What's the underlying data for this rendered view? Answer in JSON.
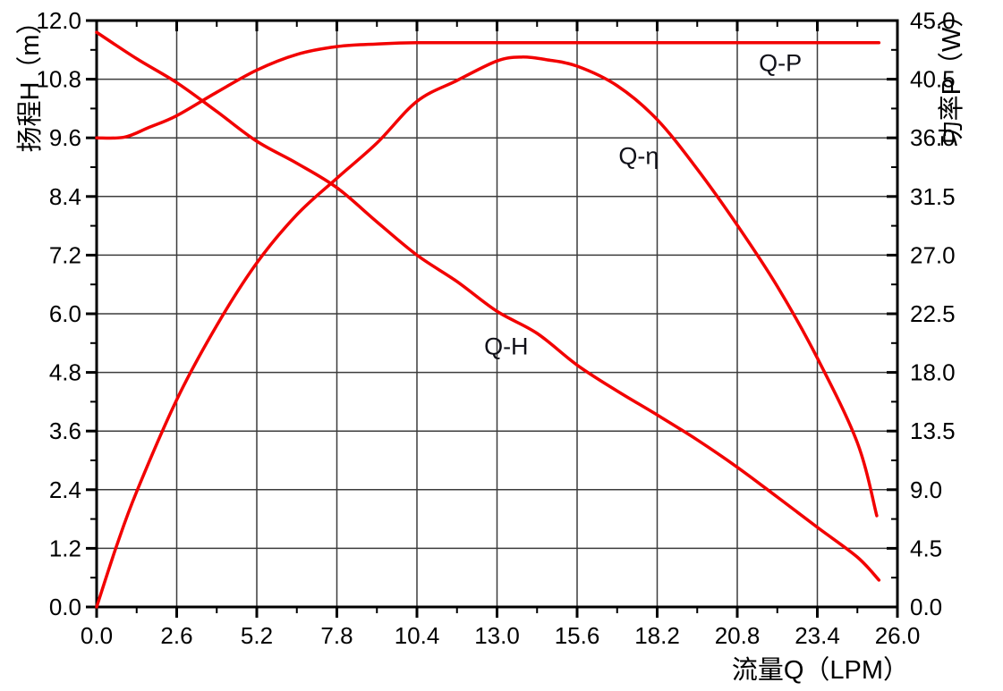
{
  "chart_data": {
    "type": "line",
    "title": "",
    "xlabel": "流量Q（LPM）",
    "ylabel_left": "扬程H（m）",
    "ylabel_right": "功率P（W）",
    "xlim": [
      0,
      26
    ],
    "ylim_left": [
      0,
      12
    ],
    "ylim_right": [
      0,
      45
    ],
    "x_tick_labels": [
      "0.0",
      "2.6",
      "5.2",
      "7.8",
      "10.4",
      "13.0",
      "15.6",
      "18.2",
      "20.8",
      "23.4",
      "26.0"
    ],
    "y_left_tick_labels": [
      "0.0",
      "1.2",
      "2.4",
      "3.6",
      "4.8",
      "6.0",
      "7.2",
      "8.4",
      "9.6",
      "10.8",
      "12.0"
    ],
    "y_right_tick_labels": [
      "0.0",
      "4.5",
      "9.0",
      "13.5",
      "18.0",
      "22.5",
      "27.0",
      "31.5",
      "36.0",
      "40.5",
      "45.0"
    ],
    "x_major_step": 2.6,
    "x_minor_step": 1.3,
    "y_left_major_step": 1.2,
    "y_left_minor_step": 0.6,
    "y_right_major_step": 4.5,
    "y_right_minor_step": 2.25,
    "grid": true,
    "legend_position": "inline-labels",
    "colors": {
      "curve": "#f20000",
      "axis": "#000000",
      "grid": "#3c3c3c",
      "text": "#000000"
    },
    "series": [
      {
        "name": "Q-H",
        "label": "Q-H",
        "axis": "left",
        "label_at": {
          "x": 13.3,
          "y": 5.32
        },
        "points": [
          [
            0,
            11.76
          ],
          [
            1.3,
            11.22
          ],
          [
            2.6,
            10.73
          ],
          [
            3.9,
            10.14
          ],
          [
            5.2,
            9.53
          ],
          [
            6.5,
            9.08
          ],
          [
            7.8,
            8.58
          ],
          [
            9.1,
            7.88
          ],
          [
            10.4,
            7.2
          ],
          [
            11.7,
            6.66
          ],
          [
            13,
            6.05
          ],
          [
            14.3,
            5.6
          ],
          [
            15.6,
            4.95
          ],
          [
            16.9,
            4.42
          ],
          [
            18.2,
            3.93
          ],
          [
            19.5,
            3.42
          ],
          [
            20.8,
            2.86
          ],
          [
            22.1,
            2.25
          ],
          [
            23.4,
            1.63
          ],
          [
            24.7,
            1.02
          ],
          [
            25.4,
            0.55
          ]
        ]
      },
      {
        "name": "Q-P",
        "label": "Q-P",
        "axis": "right",
        "label_at": {
          "x": 22.2,
          "y": 41.7
        },
        "points": [
          [
            0,
            36
          ],
          [
            0.9,
            36.05
          ],
          [
            1.7,
            36.8
          ],
          [
            2.6,
            37.7
          ],
          [
            3.9,
            39.5
          ],
          [
            5.2,
            41.2
          ],
          [
            6.5,
            42.4
          ],
          [
            7.8,
            43.0
          ],
          [
            9.1,
            43.2
          ],
          [
            10.4,
            43.3
          ],
          [
            13,
            43.3
          ],
          [
            15.6,
            43.3
          ],
          [
            18.2,
            43.3
          ],
          [
            20.8,
            43.3
          ],
          [
            23.4,
            43.3
          ],
          [
            25.4,
            43.3
          ]
        ]
      },
      {
        "name": "Q-eta",
        "label": "Q-η",
        "axis": "right",
        "label_at": {
          "x": 17.6,
          "y": 34.6
        },
        "points": [
          [
            0,
            0
          ],
          [
            0.65,
            4.7
          ],
          [
            1.3,
            8.85
          ],
          [
            2.6,
            15.9
          ],
          [
            3.9,
            21.6
          ],
          [
            5.2,
            26.4
          ],
          [
            6.5,
            30.1
          ],
          [
            7.8,
            32.9
          ],
          [
            9.1,
            35.6
          ],
          [
            10.4,
            38.8
          ],
          [
            11.7,
            40.4
          ],
          [
            13,
            41.9
          ],
          [
            13.8,
            42.2
          ],
          [
            14.6,
            42.0
          ],
          [
            15.6,
            41.5
          ],
          [
            16.9,
            40.0
          ],
          [
            18.2,
            37.4
          ],
          [
            19.5,
            33.6
          ],
          [
            20.8,
            29.3
          ],
          [
            22.1,
            24.6
          ],
          [
            23.4,
            19.1
          ],
          [
            24.7,
            12.6
          ],
          [
            25.33,
            7.0
          ]
        ]
      }
    ]
  }
}
